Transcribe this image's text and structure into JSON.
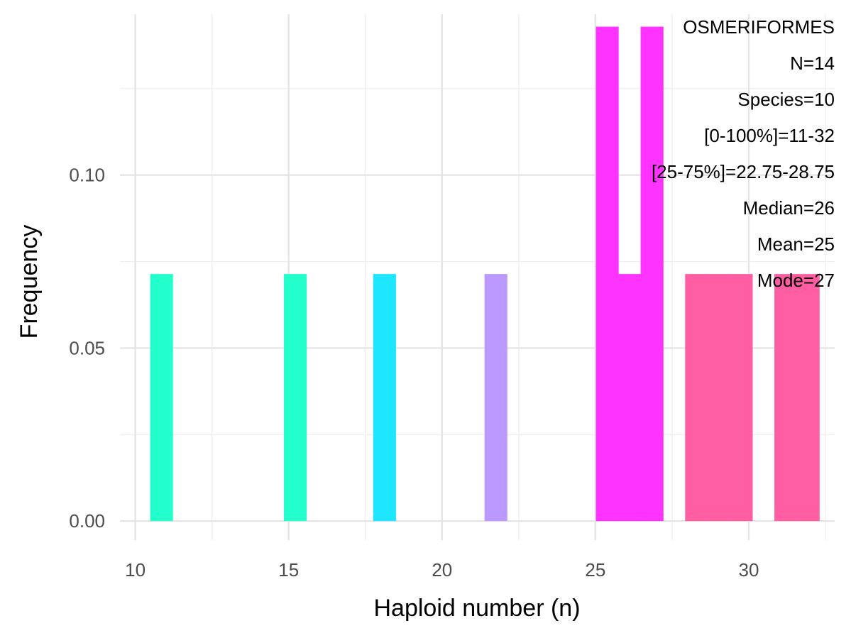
{
  "chart_data": {
    "type": "bar",
    "xlabel": "Haploid number (n)",
    "ylabel": "Frequency",
    "xlim": [
      9.5,
      32.8
    ],
    "ylim": [
      -0.0055,
      0.1465
    ],
    "x_ticks": [
      10,
      15,
      20,
      25,
      30
    ],
    "x_tick_labels": [
      "10",
      "15",
      "20",
      "25",
      "30"
    ],
    "y_ticks": [
      0.0,
      0.05,
      0.1
    ],
    "y_tick_labels": [
      "0.00",
      "0.05",
      "0.10"
    ],
    "grid": true,
    "legend": "none",
    "bin_width": 0.73,
    "bars": [
      {
        "x": 10.85,
        "value": 0.0714,
        "color": "#22FFCC"
      },
      {
        "x": 15.21,
        "value": 0.0714,
        "color": "#22FFCC"
      },
      {
        "x": 18.12,
        "value": 0.0714,
        "color": "#1EE6FF"
      },
      {
        "x": 21.75,
        "value": 0.0714,
        "color": "#BB99FF"
      },
      {
        "x": 25.38,
        "value": 0.1429,
        "color": "#FF33FF"
      },
      {
        "x": 26.11,
        "value": 0.0714,
        "color": "#FF33FF"
      },
      {
        "x": 26.84,
        "value": 0.1429,
        "color": "#FF33FF"
      },
      {
        "x": 28.29,
        "value": 0.0714,
        "color": "#FF5FA2"
      },
      {
        "x": 29.02,
        "value": 0.0714,
        "color": "#FF5FA2"
      },
      {
        "x": 29.75,
        "value": 0.0714,
        "color": "#FF5FA2"
      },
      {
        "x": 31.2,
        "value": 0.0714,
        "color": "#FF5FA2"
      },
      {
        "x": 31.93,
        "value": 0.0714,
        "color": "#FF5FA2"
      }
    ],
    "annotations": [
      "OSMERIFORMES",
      "N=14",
      "Species=10",
      "[0-100%]=11-32",
      "[25-75%]=22.75-28.75",
      "Median=26",
      "Mean=25",
      "Mode=27"
    ],
    "annotation_position": "top-right"
  }
}
